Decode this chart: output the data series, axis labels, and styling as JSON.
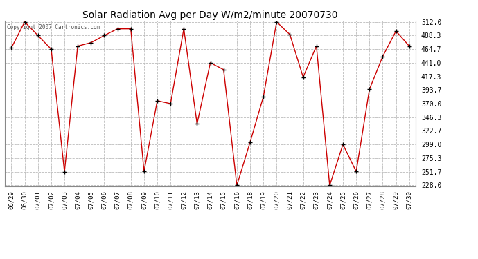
{
  "title": "Solar Radiation Avg per Day W/m2/minute 20070730",
  "copyright": "Copyright 2007 Cartronics.com",
  "dates": [
    "06/29",
    "06/30",
    "07/01",
    "07/02",
    "07/03",
    "07/04",
    "07/05",
    "07/06",
    "07/07",
    "07/08",
    "07/09",
    "07/10",
    "07/11",
    "07/12",
    "07/13",
    "07/14",
    "07/15",
    "07/16",
    "07/18",
    "07/19",
    "07/20",
    "07/21",
    "07/22",
    "07/23",
    "07/24",
    "07/25",
    "07/26",
    "07/27",
    "07/28",
    "07/29",
    "07/30"
  ],
  "values": [
    467.0,
    512.0,
    488.3,
    464.7,
    251.7,
    470.0,
    476.0,
    488.3,
    500.0,
    500.0,
    252.0,
    375.0,
    370.0,
    500.0,
    335.0,
    441.0,
    429.0,
    228.0,
    303.0,
    382.0,
    512.0,
    490.0,
    416.0,
    470.0,
    228.0,
    299.0,
    252.0,
    395.0,
    452.0,
    496.0,
    470.0
  ],
  "line_color": "#cc0000",
  "marker_color": "#000000",
  "bg_color": "#ffffff",
  "grid_color": "#bbbbbb",
  "ylim_min": 228.0,
  "ylim_max": 512.0,
  "yticks": [
    228.0,
    251.7,
    275.3,
    299.0,
    322.7,
    346.3,
    370.0,
    393.7,
    417.3,
    441.0,
    464.7,
    488.3,
    512.0
  ]
}
